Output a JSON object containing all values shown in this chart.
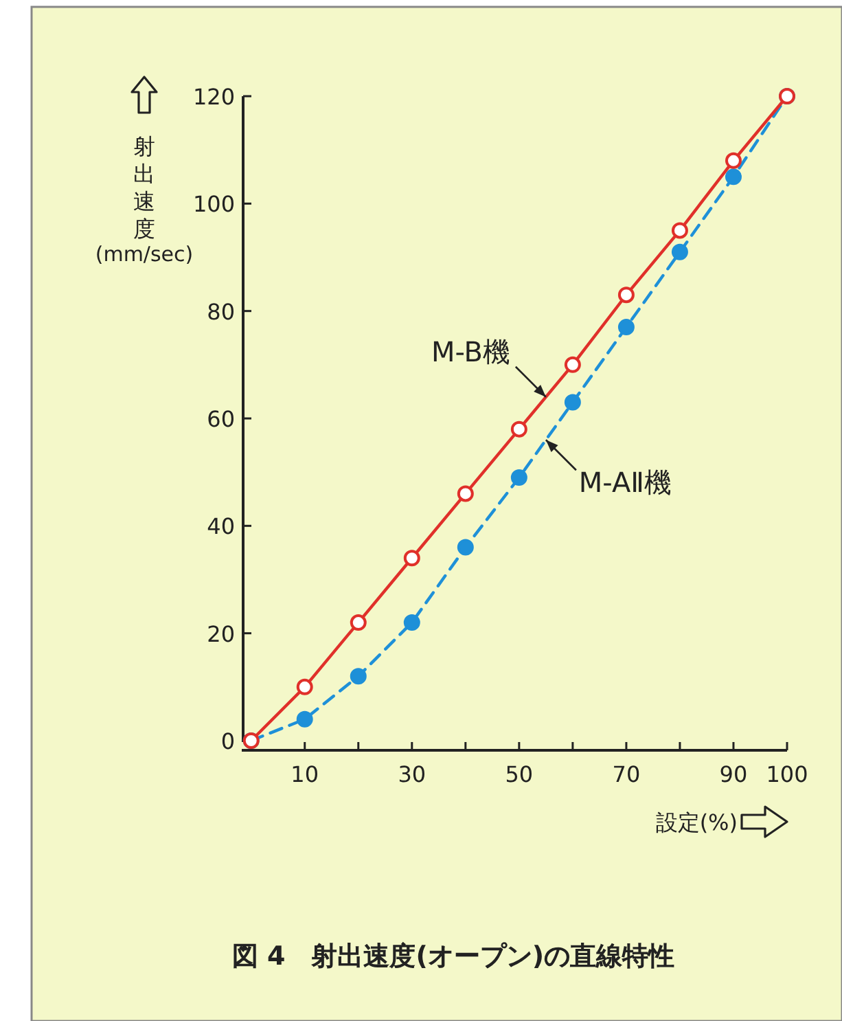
{
  "chart_data": {
    "type": "line",
    "title": "図 4　射出速度(オープン)の直線特性",
    "xlabel": "設定(%)",
    "ylabel": "射出速度 (mm/sec)",
    "x": [
      0,
      10,
      20,
      30,
      40,
      50,
      60,
      70,
      80,
      90,
      100
    ],
    "series": [
      {
        "name": "M-B機",
        "color": "#e0302a",
        "line_style": "solid",
        "marker": "circle",
        "values": [
          0,
          10,
          22,
          34,
          46,
          58,
          70,
          83,
          95,
          108,
          120
        ]
      },
      {
        "name": "M-AⅡ機",
        "color": "#1e90d8",
        "line_style": "dashed",
        "marker": "circle",
        "values": [
          0,
          4,
          12,
          22,
          36,
          49,
          63,
          77,
          91,
          105,
          120
        ]
      }
    ],
    "xlim": [
      -1.5,
      100
    ],
    "ylim": [
      0,
      120
    ],
    "xticks": [
      {
        "value": 10,
        "label": "10"
      },
      {
        "value": 20,
        "label": null
      },
      {
        "value": 30,
        "label": "30"
      },
      {
        "value": 40,
        "label": null
      },
      {
        "value": 50,
        "label": "50"
      },
      {
        "value": 60,
        "label": null
      },
      {
        "value": 70,
        "label": "70"
      },
      {
        "value": 80,
        "label": null
      },
      {
        "value": 90,
        "label": "90"
      },
      {
        "value": 100,
        "label": "100"
      }
    ],
    "yticks": [
      0,
      20,
      40,
      60,
      80,
      100,
      120
    ],
    "grid": false,
    "legend": false
  }
}
